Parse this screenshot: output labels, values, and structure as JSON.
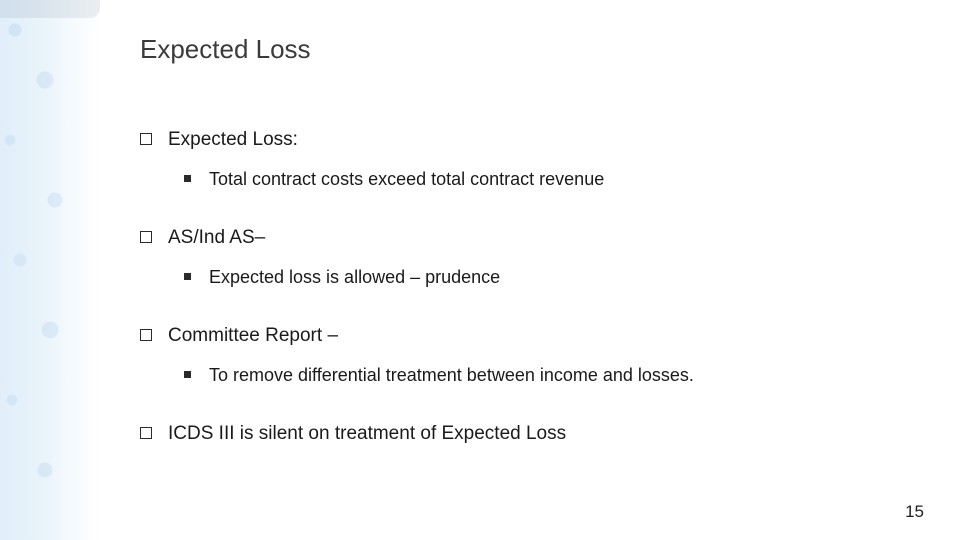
{
  "slide": {
    "title": "Expected Loss",
    "page_number": "15",
    "title_color": "#3b3b3b",
    "title_fontsize": 26,
    "body_fontsize": 19,
    "sub_fontsize": 18,
    "text_color": "#1a1a1a",
    "background_color": "#ffffff",
    "strip_color": "#cde4f5",
    "bullets": [
      {
        "text": "Expected Loss:",
        "sub": [
          {
            "text": "Total contract costs exceed total contract revenue"
          }
        ]
      },
      {
        "text": "AS/Ind AS–",
        "sub": [
          {
            "text": "Expected loss is allowed – prudence"
          }
        ]
      },
      {
        "text": "Committee Report –",
        "sub": [
          {
            "text": "To remove differential treatment between income and losses."
          }
        ]
      },
      {
        "text": "ICDS III is silent on treatment of Expected Loss",
        "sub": []
      }
    ]
  }
}
